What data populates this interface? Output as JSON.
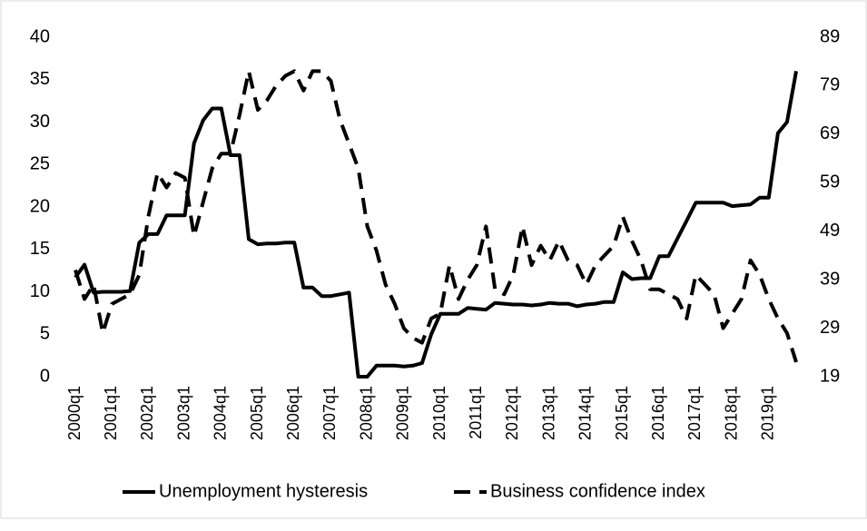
{
  "chart_data": {
    "type": "line",
    "categories": [
      "2000q1",
      null,
      null,
      null,
      "2001q1",
      null,
      null,
      null,
      "2002q1",
      null,
      null,
      null,
      "2003q1",
      null,
      null,
      null,
      "2004q1",
      null,
      null,
      null,
      "2005q1",
      null,
      null,
      null,
      "2006q1",
      null,
      null,
      null,
      "2007q1",
      null,
      null,
      null,
      "2008q1",
      null,
      null,
      null,
      "2009q1",
      null,
      null,
      null,
      "2010q1",
      null,
      null,
      null,
      "2011q1",
      null,
      null,
      null,
      "2012q1",
      null,
      null,
      null,
      "2013q1",
      null,
      null,
      null,
      "2014q1",
      null,
      null,
      null,
      "2015q1",
      null,
      null,
      null,
      "2016q1",
      null,
      null,
      null,
      "2017q1",
      null,
      null,
      null,
      "2018q1",
      null,
      null,
      null,
      "2019q1",
      null,
      null,
      null
    ],
    "series": [
      {
        "name": "Unemployment hysteresis",
        "color": "#000000",
        "line_style": "solid",
        "axis": "y",
        "values": [
          11.7,
          13.2,
          9.9,
          10,
          10,
          10,
          10.1,
          15.8,
          16.8,
          16.8,
          19,
          19,
          19,
          27.5,
          30.2,
          31.6,
          31.6,
          26.1,
          26.1,
          16.2,
          15.6,
          15.7,
          15.7,
          15.8,
          15.8,
          10.5,
          10.5,
          9.5,
          9.5,
          9.7,
          9.9,
          0,
          0,
          1.3,
          1.3,
          1.3,
          1.2,
          1.3,
          1.6,
          5,
          7.4,
          7.4,
          7.4,
          8.1,
          8,
          7.9,
          8.7,
          8.6,
          8.5,
          8.5,
          8.4,
          8.5,
          8.7,
          8.6,
          8.6,
          8.3,
          8.5,
          8.6,
          8.8,
          8.8,
          12.3,
          11.5,
          11.6,
          11.6,
          14.2,
          14.2,
          16.3,
          18.4,
          20.5,
          20.5,
          20.5,
          20.5,
          20.1,
          20.2,
          20.3,
          21.1,
          21.1,
          28.7,
          30,
          36
        ]
      },
      {
        "name": "Business confidence index",
        "color": "#000000",
        "line_style": "dashed",
        "axis": "y2",
        "values": [
          41,
          35,
          38,
          28,
          34,
          35,
          36,
          40,
          52,
          61,
          58,
          61,
          60,
          48,
          55,
          62,
          65,
          65,
          73,
          82,
          74,
          76,
          79,
          81,
          82,
          78,
          82,
          82,
          80,
          72,
          67,
          62,
          50,
          45,
          38,
          34,
          29,
          27,
          26,
          31,
          32,
          42,
          35,
          39,
          42,
          50,
          37,
          36,
          40,
          50,
          42,
          46,
          43,
          47,
          43,
          42,
          38,
          42,
          44,
          46,
          52,
          47,
          43,
          37,
          37,
          36,
          35,
          31,
          40,
          38,
          36,
          29,
          32,
          35,
          43,
          40,
          35,
          31,
          28,
          22
        ]
      }
    ],
    "ylim": [
      0,
      40
    ],
    "yticks": [
      0,
      5,
      10,
      15,
      20,
      25,
      30,
      35,
      40
    ],
    "y2lim": [
      19,
      89
    ],
    "y2ticks": [
      19,
      29,
      39,
      49,
      59,
      69,
      79,
      89
    ],
    "grid": false,
    "legend": "bottom"
  }
}
